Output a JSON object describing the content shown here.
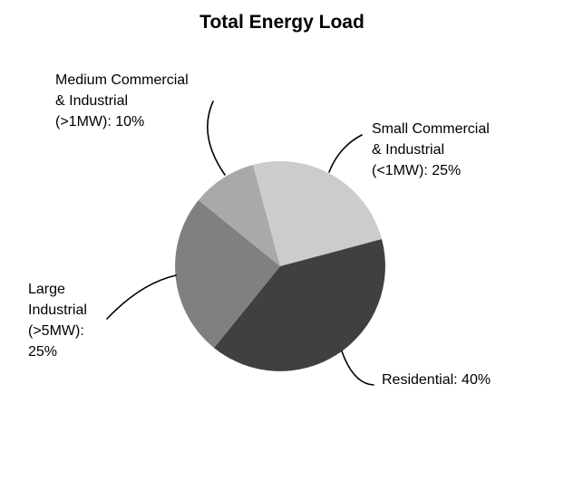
{
  "title": "Total Energy Load",
  "chart_data": {
    "type": "pie",
    "title": "Total Energy Load",
    "direction": "clockwise",
    "start_angle_deg": -15,
    "legend": "none",
    "labels_as_callouts": true,
    "background": "#ffffff",
    "slices": [
      {
        "id": "small-commercial-industrial",
        "label": "Small Commercial & Industrial (<1MW)",
        "value": 25,
        "color": "#cccccc"
      },
      {
        "id": "residential",
        "label": "Residential",
        "value": 40,
        "color": "#404040"
      },
      {
        "id": "large-industrial",
        "label": "Large Industrial (>5MW)",
        "value": 25,
        "color": "#808080"
      },
      {
        "id": "medium-commercial-industrial",
        "label": "Medium Commercial & Industrial (>1MW)",
        "value": 10,
        "color": "#a9a9a9"
      }
    ]
  },
  "callouts": {
    "medium_ci": "Medium Commercial\n& Industrial\n(>1MW): 10%",
    "small_ci": "Small Commercial\n& Industrial\n(<1MW): 25%",
    "large_industrial": "Large\nIndustrial\n(>5MW):\n25%",
    "residential": "Residential: 40%"
  }
}
